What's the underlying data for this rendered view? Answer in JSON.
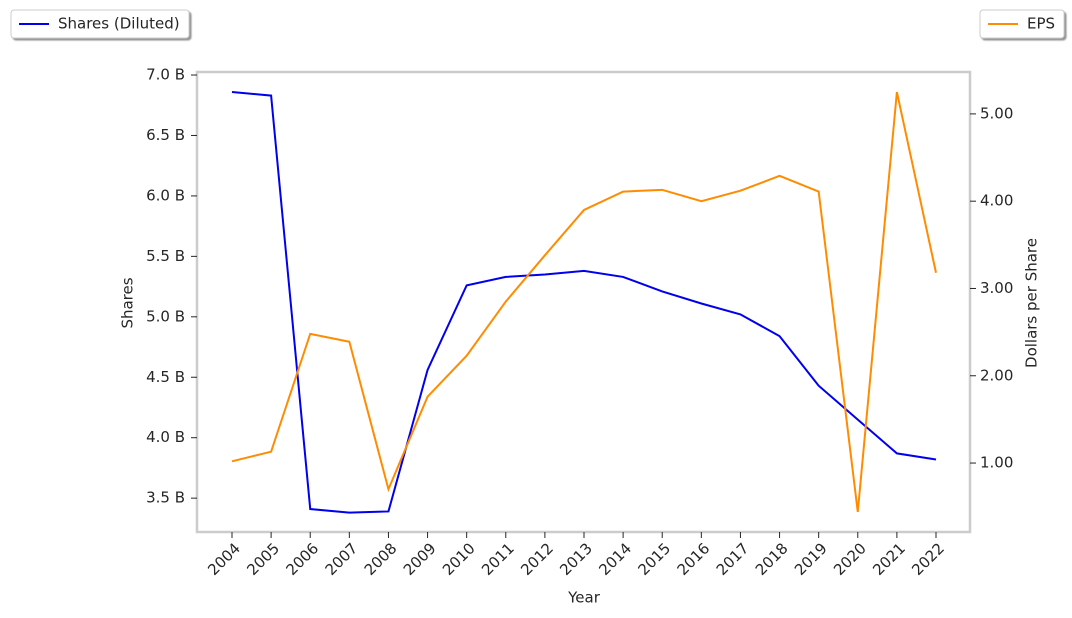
{
  "chart_data": {
    "type": "line",
    "xlabel": "Year",
    "ylabel": "Shares",
    "y2label": "Dollars per Share",
    "categories": [
      "2004",
      "2005",
      "2006",
      "2007",
      "2008",
      "2009",
      "2010",
      "2011",
      "2012",
      "2013",
      "2014",
      "2015",
      "2016",
      "2017",
      "2018",
      "2019",
      "2020",
      "2021",
      "2022"
    ],
    "series": [
      {
        "name": "Shares (Diluted)",
        "color": "#0000ee",
        "axis": "y",
        "values": [
          6.86,
          6.83,
          3.41,
          3.38,
          3.39,
          4.56,
          5.26,
          5.33,
          5.35,
          5.38,
          5.33,
          5.21,
          5.11,
          5.02,
          4.84,
          4.43,
          4.15,
          3.87,
          3.82
        ]
      },
      {
        "name": "EPS",
        "color": "#ff8c00",
        "axis": "y2",
        "values": [
          1.02,
          1.13,
          2.48,
          2.39,
          0.7,
          1.76,
          2.23,
          2.85,
          3.38,
          3.9,
          4.11,
          4.13,
          4.0,
          4.12,
          4.29,
          4.11,
          0.44,
          5.25,
          3.18
        ]
      }
    ],
    "ylim": [
      3.22,
      7.025
    ],
    "yticks": [
      {
        "value": 3.5,
        "label": "3.5 B"
      },
      {
        "value": 4.0,
        "label": "4.0 B"
      },
      {
        "value": 4.5,
        "label": "4.5 B"
      },
      {
        "value": 5.0,
        "label": "5.0 B"
      },
      {
        "value": 5.5,
        "label": "5.5 B"
      },
      {
        "value": 6.0,
        "label": "6.0 B"
      },
      {
        "value": 6.5,
        "label": "6.5 B"
      },
      {
        "value": 7.0,
        "label": "7.0 B"
      }
    ],
    "y2lim": [
      0.21,
      5.48
    ],
    "y2ticks": [
      {
        "value": 1,
        "label": "1.00"
      },
      {
        "value": 2,
        "label": "2.00"
      },
      {
        "value": 3,
        "label": "3.00"
      },
      {
        "value": 4,
        "label": "4.00"
      },
      {
        "value": 5,
        "label": "5.00"
      }
    ]
  }
}
